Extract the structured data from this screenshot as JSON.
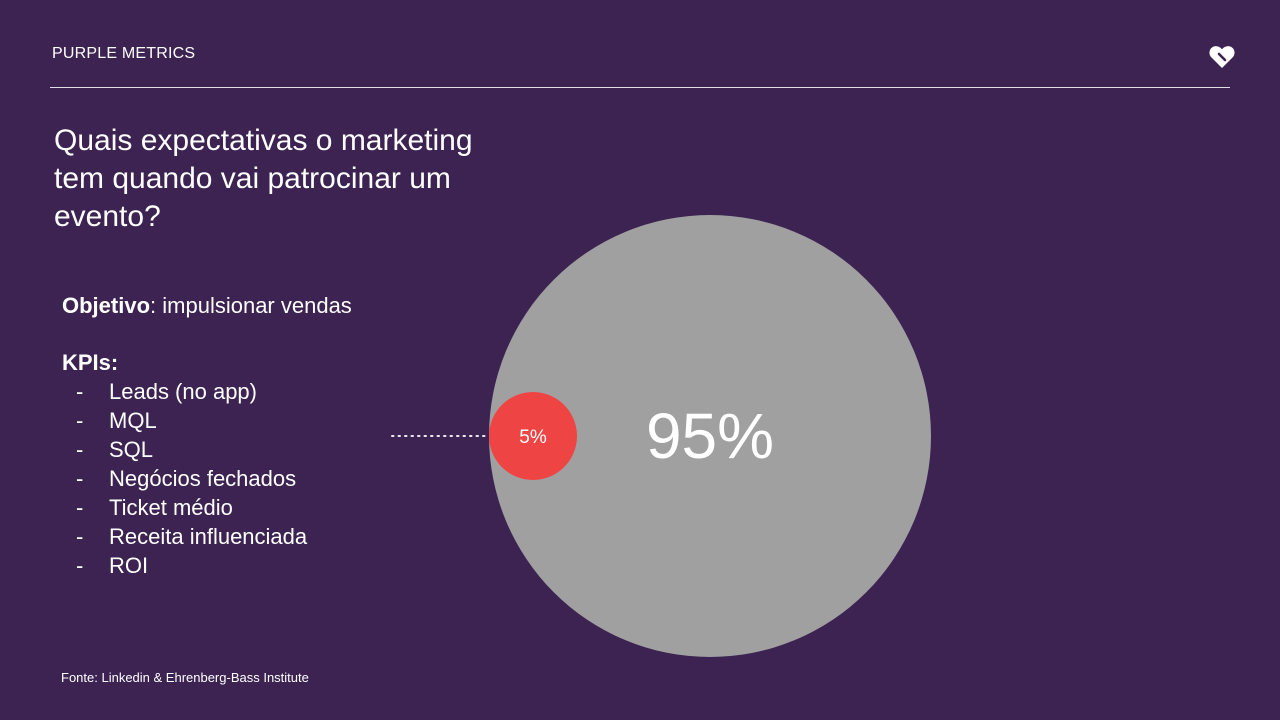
{
  "header": {
    "brand": "PURPLE METRICS",
    "logo_icon": "heart-logo-icon"
  },
  "title": "Quais expectativas o marketing tem quando vai patrocinar um evento?",
  "objective": {
    "label": "Objetivo",
    "separator": ":",
    "value": "impulsionar vendas"
  },
  "kpis": {
    "title": "KPIs:",
    "dash": "-",
    "items": [
      "Leads (no app)",
      "MQL",
      "SQL",
      "Negócios fechados",
      "Ticket médio",
      "Receita influenciada",
      "ROI"
    ]
  },
  "source": "Fonte: Linkedin & Ehrenberg-Bass Institute",
  "chart_data": {
    "type": "bubble",
    "values": [
      {
        "value": 95,
        "label": "95%",
        "color": "#a0a0a0"
      },
      {
        "value": 5,
        "label": "5%",
        "color": "#ef4444"
      }
    ]
  },
  "colors": {
    "background": "#3d2352",
    "large_circle": "#a0a0a0",
    "small_circle": "#ef4444",
    "text": "#ffffff"
  }
}
